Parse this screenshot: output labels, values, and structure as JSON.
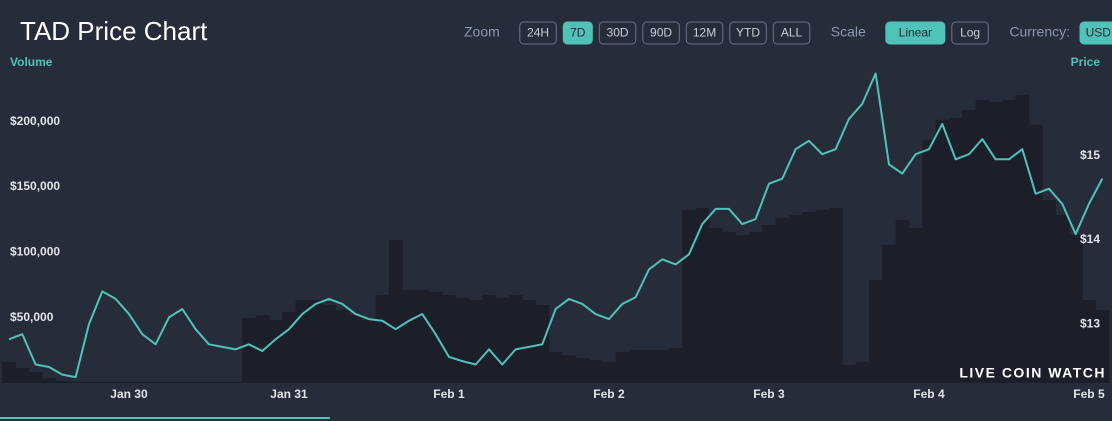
{
  "header": {
    "title": "TAD Price Chart"
  },
  "controls": {
    "zoom_label": "Zoom",
    "zoom_options": [
      "24H",
      "7D",
      "30D",
      "90D",
      "12M",
      "YTD",
      "ALL"
    ],
    "zoom_active": "7D",
    "scale_label": "Scale",
    "scale_options": [
      "Linear",
      "Log"
    ],
    "scale_active": "Linear",
    "currency_label": "Currency:",
    "currency_options": [
      "USD"
    ],
    "currency_active": "USD"
  },
  "watermark": "LIVE COIN WATCH",
  "chart_data": {
    "type": "combo",
    "ylabel": "Volume",
    "y2label": "Price",
    "categories": [
      null,
      null,
      null,
      null,
      null,
      null,
      null,
      null,
      null,
      "Jan 30",
      null,
      null,
      null,
      null,
      null,
      null,
      null,
      null,
      null,
      null,
      null,
      "Jan 31",
      null,
      null,
      null,
      null,
      null,
      null,
      null,
      null,
      null,
      null,
      null,
      "Feb 1",
      null,
      null,
      null,
      null,
      null,
      null,
      null,
      null,
      null,
      null,
      null,
      "Feb 2",
      null,
      null,
      null,
      null,
      null,
      null,
      null,
      null,
      null,
      null,
      null,
      "Feb 3",
      null,
      null,
      null,
      null,
      null,
      null,
      null,
      null,
      null,
      null,
      null,
      "Feb 4",
      null,
      null,
      null,
      null,
      null,
      null,
      null,
      null,
      null,
      null,
      null,
      "Feb 5",
      null
    ],
    "series": [
      {
        "name": "Volume",
        "type": "bar",
        "axis": "y",
        "color": "#1c1f29",
        "values": [
          16000,
          11500,
          8400,
          3800,
          1500,
          800,
          800,
          800,
          800,
          800,
          800,
          800,
          800,
          800,
          800,
          800,
          800,
          800,
          49800,
          52000,
          48200,
          54400,
          63500,
          63500,
          59700,
          55900,
          52000,
          48200,
          67400,
          109500,
          71200,
          71200,
          69700,
          67400,
          65100,
          63500,
          67400,
          65100,
          67400,
          63500,
          59700,
          23700,
          21400,
          19100,
          17600,
          16100,
          23700,
          25300,
          25300,
          25300,
          26800,
          132500,
          134000,
          118700,
          115600,
          113300,
          115600,
          121000,
          126300,
          128600,
          130900,
          132500,
          134000,
          13800,
          16100,
          78900,
          105700,
          124800,
          118700,
          186100,
          201400,
          202900,
          209000,
          216700,
          215100,
          216700,
          220500,
          197600,
          140100,
          128600,
          113300,
          63500,
          55900
        ]
      },
      {
        "name": "Price",
        "type": "line",
        "axis": "y2",
        "color": "#4fc3b8",
        "values": [
          12.82,
          12.88,
          12.52,
          12.49,
          12.4,
          12.37,
          13.0,
          13.39,
          13.3,
          13.12,
          12.88,
          12.76,
          13.08,
          13.18,
          12.94,
          12.76,
          12.73,
          12.7,
          12.76,
          12.68,
          12.82,
          12.94,
          13.12,
          13.24,
          13.3,
          13.24,
          13.12,
          13.06,
          13.04,
          12.94,
          13.04,
          13.12,
          12.88,
          12.61,
          12.56,
          12.52,
          12.7,
          12.52,
          12.7,
          12.73,
          12.76,
          13.18,
          13.3,
          13.24,
          13.12,
          13.06,
          13.24,
          13.32,
          13.65,
          13.77,
          13.71,
          13.83,
          14.19,
          14.37,
          14.37,
          14.19,
          14.25,
          14.67,
          14.73,
          15.08,
          15.18,
          15.02,
          15.08,
          15.44,
          15.62,
          15.98,
          14.9,
          14.79,
          15.02,
          15.08,
          15.38,
          14.96,
          15.02,
          15.2,
          14.96,
          14.96,
          15.08,
          14.55,
          14.61,
          14.43,
          14.07,
          14.43,
          14.73
        ]
      }
    ],
    "ylim": [
      0,
      251000
    ],
    "yticks": [
      {
        "value": 50000,
        "label": "$50,000"
      },
      {
        "value": 100000,
        "label": "$100,000"
      },
      {
        "value": 150000,
        "label": "$150,000"
      },
      {
        "value": 200000,
        "label": "$200,000"
      }
    ],
    "y2lim": [
      12.3,
      16.2
    ],
    "y2ticks": [
      {
        "value": 13,
        "label": "$13"
      },
      {
        "value": 14,
        "label": "$14"
      },
      {
        "value": 15,
        "label": "$15"
      }
    ],
    "grid": false
  }
}
